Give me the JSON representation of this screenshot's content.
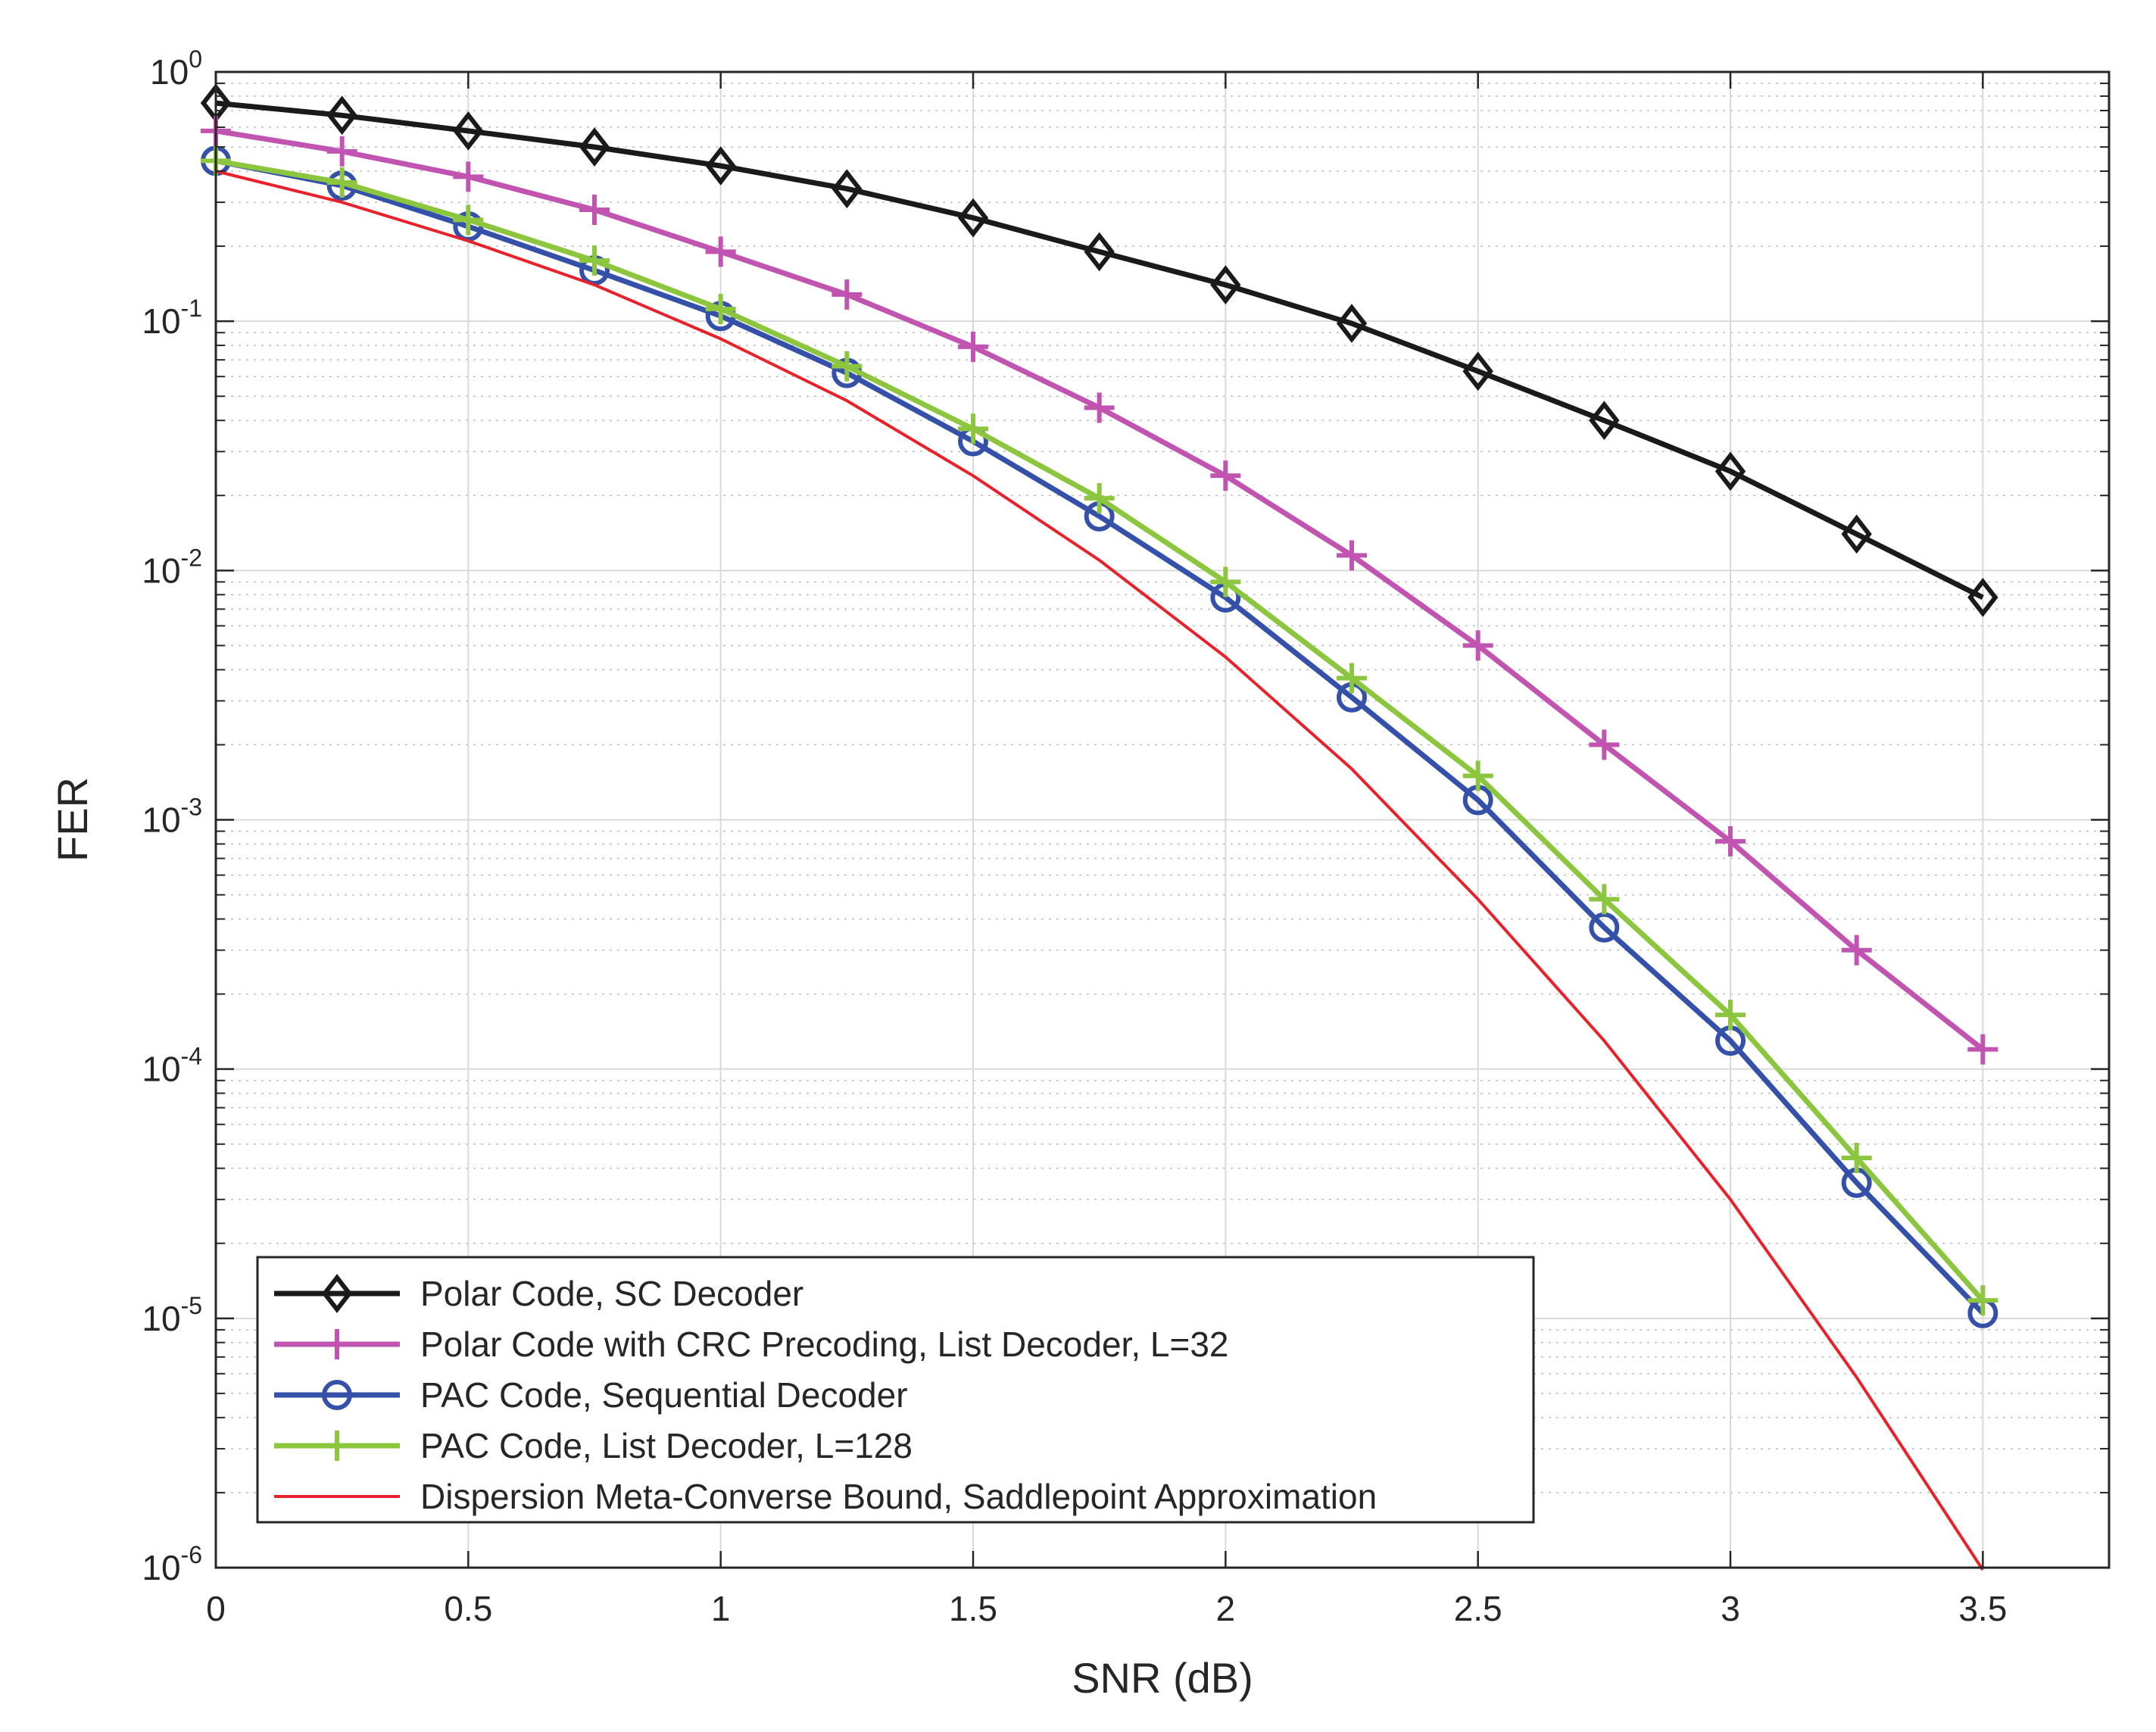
{
  "chart_data": {
    "type": "line",
    "xlabel": "SNR (dB)",
    "ylabel": "FER",
    "y_scale": "log",
    "xlim": [
      0,
      3.75
    ],
    "ylim": [
      1e-06,
      1
    ],
    "grid": true,
    "x_ticks": [
      0,
      0.5,
      1,
      1.5,
      2,
      2.5,
      3,
      3.5
    ],
    "x_tick_labels": [
      "0",
      "0.5",
      "1",
      "1.5",
      "2",
      "2.5",
      "3",
      "3.5"
    ],
    "y_ticks": [
      {
        "value": 1,
        "base": "10",
        "exp": "0"
      },
      {
        "value": 0.1,
        "base": "10",
        "exp": "-1"
      },
      {
        "value": 0.01,
        "base": "10",
        "exp": "-2"
      },
      {
        "value": 0.001,
        "base": "10",
        "exp": "-3"
      },
      {
        "value": 0.0001,
        "base": "10",
        "exp": "-4"
      },
      {
        "value": 1e-05,
        "base": "10",
        "exp": "-5"
      },
      {
        "value": 1e-06,
        "base": "10",
        "exp": "-6"
      }
    ],
    "legend_position": "bottom-left",
    "series": [
      {
        "name": "Polar Code, SC Decoder",
        "color": "#1a1a1a",
        "marker": "diamond",
        "x": [
          0,
          0.25,
          0.5,
          0.75,
          1,
          1.25,
          1.5,
          1.75,
          2,
          2.25,
          2.5,
          2.75,
          3,
          3.25,
          3.5
        ],
        "y": [
          0.75,
          0.67,
          0.58,
          0.5,
          0.42,
          0.34,
          0.26,
          0.19,
          0.14,
          0.098,
          0.063,
          0.04,
          0.025,
          0.014,
          0.0078
        ]
      },
      {
        "name": "Polar Code with CRC Precoding, List Decoder, L=32",
        "color": "#c154b0",
        "marker": "plus",
        "x": [
          0,
          0.25,
          0.5,
          0.75,
          1,
          1.25,
          1.5,
          1.75,
          2,
          2.25,
          2.5,
          2.75,
          3,
          3.25,
          3.5
        ],
        "y": [
          0.58,
          0.48,
          0.38,
          0.28,
          0.19,
          0.128,
          0.079,
          0.045,
          0.024,
          0.0115,
          0.005,
          0.002,
          0.00082,
          0.0003,
          0.00012
        ]
      },
      {
        "name": "PAC Code, Sequential Decoder",
        "color": "#3450a8",
        "marker": "circle",
        "x": [
          0,
          0.25,
          0.5,
          0.75,
          1,
          1.25,
          1.5,
          1.75,
          2,
          2.25,
          2.5,
          2.75,
          3,
          3.25,
          3.5
        ],
        "y": [
          0.44,
          0.35,
          0.24,
          0.16,
          0.105,
          0.062,
          0.033,
          0.0165,
          0.0078,
          0.0031,
          0.0012,
          0.00037,
          0.00013,
          3.5e-05,
          1.05e-05
        ]
      },
      {
        "name": "PAC Code, List Decoder, L=128",
        "color": "#8cc63f",
        "marker": "plus",
        "x": [
          0,
          0.25,
          0.5,
          0.75,
          1,
          1.25,
          1.5,
          1.75,
          2,
          2.25,
          2.5,
          2.75,
          3,
          3.25,
          3.5
        ],
        "y": [
          0.44,
          0.36,
          0.255,
          0.175,
          0.112,
          0.066,
          0.037,
          0.0195,
          0.009,
          0.0037,
          0.0015,
          0.00048,
          0.000165,
          4.4e-05,
          1.18e-05
        ]
      },
      {
        "name": "Dispersion Meta-Converse Bound, Saddlepoint Approximation",
        "color": "#e8222a",
        "marker": "none",
        "x": [
          0,
          0.25,
          0.5,
          0.75,
          1,
          1.25,
          1.5,
          1.75,
          2,
          2.25,
          2.5,
          2.75,
          3,
          3.25,
          3.5
        ],
        "y": [
          0.4,
          0.3,
          0.21,
          0.14,
          0.085,
          0.048,
          0.024,
          0.011,
          0.0045,
          0.0016,
          0.00048,
          0.00013,
          3e-05,
          5.8e-06,
          9.8e-07
        ]
      }
    ]
  }
}
